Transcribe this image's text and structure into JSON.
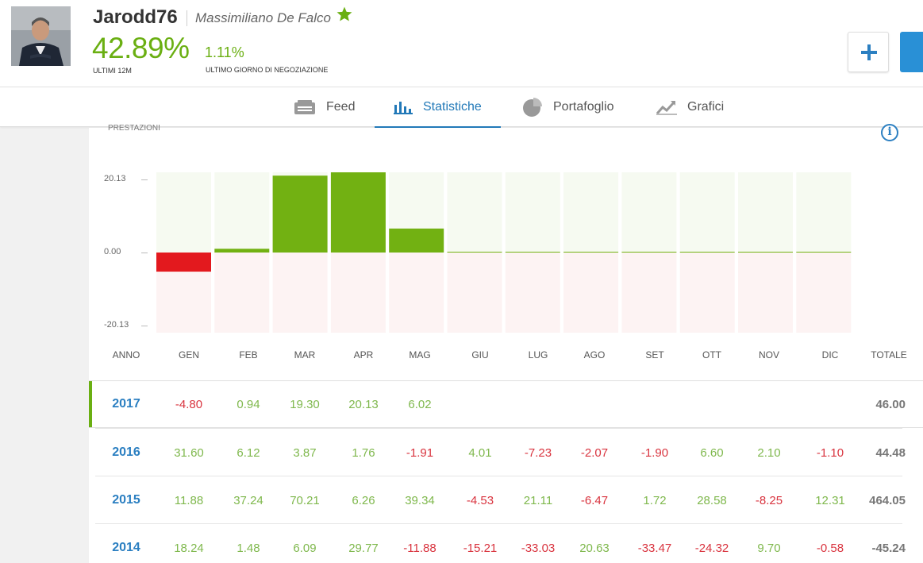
{
  "profile": {
    "username": "Jarodd76",
    "full_name": "Massimiliano De Falco",
    "gain_12m": "42.89%",
    "gain_12m_caption": "ULTIMI 12M",
    "gain_last_day": "1.11%",
    "gain_last_day_caption": "ULTIMO GIORNO DI NEGOZIAZIONE",
    "star_color": "#6aaf12",
    "plus_label": "+"
  },
  "tabs": [
    {
      "label": "Feed",
      "icon": "feed-icon",
      "active": false
    },
    {
      "label": "Statistiche",
      "icon": "bar-chart-icon",
      "active": true
    },
    {
      "label": "Portafoglio",
      "icon": "pie-chart-icon",
      "active": false
    },
    {
      "label": "Grafici",
      "icon": "line-chart-icon",
      "active": false
    }
  ],
  "stats": {
    "section_label": "PRESTAZIONI",
    "info_label": "i",
    "columns": [
      "ANNO",
      "GEN",
      "FEB",
      "MAR",
      "APR",
      "MAG",
      "GIU",
      "LUG",
      "AGO",
      "SET",
      "OTT",
      "NOV",
      "DIC",
      "TOTALE"
    ],
    "rows": [
      {
        "year": "2017",
        "values": [
          "-4.80",
          "0.94",
          "19.30",
          "20.13",
          "6.02",
          "",
          "",
          "",
          "",
          "",
          "",
          ""
        ],
        "total": "46.00",
        "current": true
      },
      {
        "year": "2016",
        "values": [
          "31.60",
          "6.12",
          "3.87",
          "1.76",
          "-1.91",
          "4.01",
          "-7.23",
          "-2.07",
          "-1.90",
          "6.60",
          "2.10",
          "-1.10"
        ],
        "total": "44.48",
        "current": false
      },
      {
        "year": "2015",
        "values": [
          "11.88",
          "37.24",
          "70.21",
          "6.26",
          "39.34",
          "-4.53",
          "21.11",
          "-6.47",
          "1.72",
          "28.58",
          "-8.25",
          "12.31"
        ],
        "total": "464.05",
        "current": false
      },
      {
        "year": "2014",
        "values": [
          "18.24",
          "1.48",
          "6.09",
          "29.77",
          "-11.88",
          "-15.21",
          "-33.03",
          "20.63",
          "-33.47",
          "-24.32",
          "9.70",
          "-0.58"
        ],
        "total": "-45.24",
        "current": false
      }
    ]
  },
  "chart_data": {
    "type": "bar",
    "categories": [
      "GEN",
      "FEB",
      "MAR",
      "APR",
      "MAG",
      "GIU",
      "LUG",
      "AGO",
      "SET",
      "OTT",
      "NOV",
      "DIC"
    ],
    "values": [
      -4.8,
      0.94,
      19.3,
      20.13,
      6.02,
      0,
      0,
      0,
      0,
      0,
      0,
      0
    ],
    "yticks": [
      "20.13",
      "0.00",
      "-20.13"
    ],
    "ylim": [
      -20.13,
      20.13
    ],
    "positive_color": "#72b112",
    "negative_color": "#e3191e",
    "positive_bg": "#f6faf1",
    "negative_bg": "#fdf3f3"
  }
}
